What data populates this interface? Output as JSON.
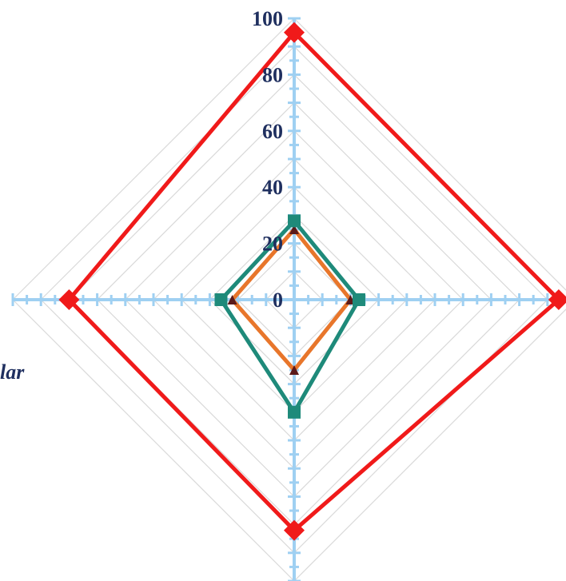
{
  "chart_data": {
    "type": "radar",
    "axes": [
      "",
      "",
      "",
      "lar"
    ],
    "rmax": 100,
    "ticks": [
      "0",
      "20",
      "40",
      "60",
      "80",
      "100"
    ],
    "series": [
      {
        "values": [
          95,
          94,
          82,
          80
        ],
        "color": "#f01a1a",
        "marker": "diamond"
      },
      {
        "values": [
          25,
          20,
          25,
          22
        ],
        "color": "#e8762b",
        "marker": "triangle"
      },
      {
        "values": [
          28,
          23,
          40,
          26
        ],
        "color": "#1e8a7a",
        "marker": "square"
      }
    ],
    "colors": {
      "axis": "#9fd0f2",
      "grid": "#d9d9d9",
      "labels": "#1f2f5f"
    }
  }
}
